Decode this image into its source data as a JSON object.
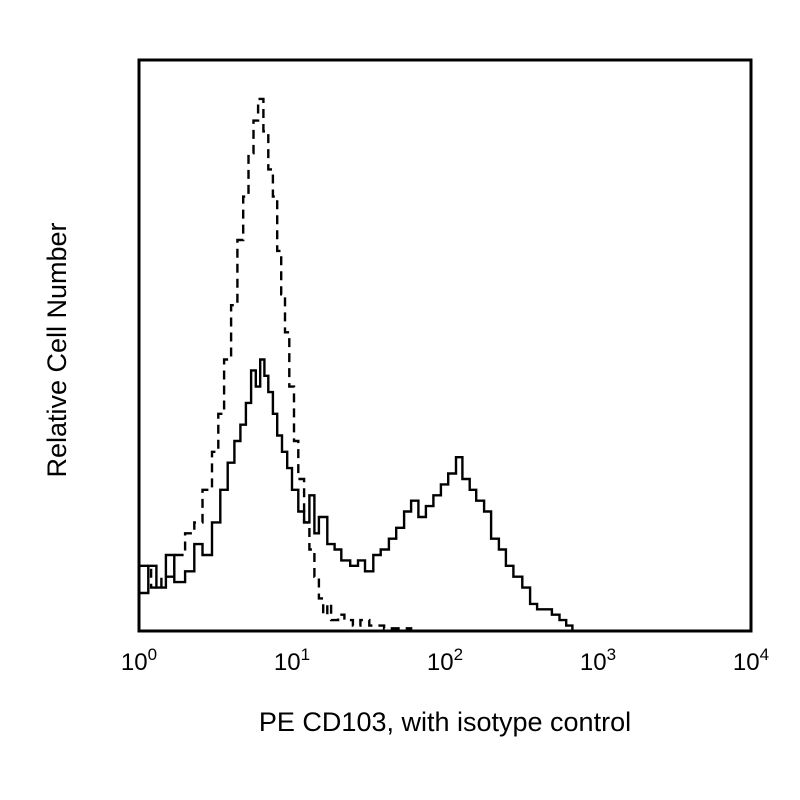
{
  "chart_data": {
    "type": "line",
    "title": "",
    "xlabel": "PE CD103, with isotype control",
    "ylabel": "Relative Cell Number",
    "x_scale": "log",
    "xlim": [
      1,
      10000
    ],
    "ylim": [
      0,
      100
    ],
    "x_ticks": [
      {
        "value": 1,
        "base": "10",
        "exp": "0"
      },
      {
        "value": 10,
        "base": "10",
        "exp": "1"
      },
      {
        "value": 100,
        "base": "10",
        "exp": "2"
      },
      {
        "value": 1000,
        "base": "10",
        "exp": "3"
      },
      {
        "value": 10000,
        "base": "10",
        "exp": "4"
      }
    ],
    "grid": false,
    "series": [
      {
        "style": "solid",
        "color": "#000000",
        "x": [
          1.0,
          1.15,
          1.3,
          1.5,
          1.7,
          2.0,
          2.3,
          2.6,
          3.0,
          3.4,
          3.8,
          4.2,
          4.6,
          5.0,
          5.4,
          5.8,
          6.2,
          6.6,
          7.0,
          7.5,
          8.0,
          8.6,
          9.3,
          10,
          11,
          12,
          13,
          14,
          15,
          17,
          19,
          21,
          24,
          27,
          30,
          34,
          38,
          43,
          48,
          54,
          60,
          67,
          75,
          84,
          94,
          105,
          118,
          130,
          145,
          160,
          180,
          200,
          225,
          250,
          280,
          320,
          360,
          400,
          450,
          500,
          560,
          620,
          680
        ],
        "y": [
          7,
          12,
          8,
          14,
          9,
          11,
          16,
          14,
          20,
          26,
          31,
          35,
          38,
          42,
          48,
          45,
          50,
          47,
          44,
          40,
          36,
          33,
          30,
          26,
          22,
          20,
          25,
          18,
          21,
          16,
          15,
          13,
          12,
          13,
          11,
          14,
          15,
          17,
          19,
          22,
          24,
          21,
          23,
          25,
          27,
          29,
          32,
          28,
          26,
          24,
          22,
          17,
          15,
          12,
          10,
          8,
          5,
          4,
          4,
          3,
          2,
          1,
          0
        ]
      },
      {
        "style": "dashed",
        "color": "#000000",
        "x": [
          1.0,
          1.2,
          1.4,
          1.7,
          2.0,
          2.3,
          2.6,
          3.0,
          3.3,
          3.6,
          4.0,
          4.4,
          4.8,
          5.2,
          5.6,
          6.0,
          6.5,
          7.0,
          7.5,
          8.0,
          8.5,
          9.0,
          9.6,
          10.3,
          11,
          12,
          13,
          14,
          15,
          16,
          17,
          18,
          20,
          22,
          25,
          28,
          32,
          36,
          40,
          50,
          60,
          80,
          100
        ],
        "y": [
          12,
          8,
          10,
          14,
          18,
          20,
          26,
          33,
          40,
          50,
          60,
          72,
          80,
          88,
          94,
          98,
          92,
          85,
          80,
          70,
          62,
          55,
          45,
          35,
          28,
          20,
          15,
          10,
          6,
          3,
          5,
          2,
          3,
          2,
          1,
          2,
          1,
          1,
          0.5,
          0.5,
          0,
          0,
          0
        ]
      }
    ]
  }
}
